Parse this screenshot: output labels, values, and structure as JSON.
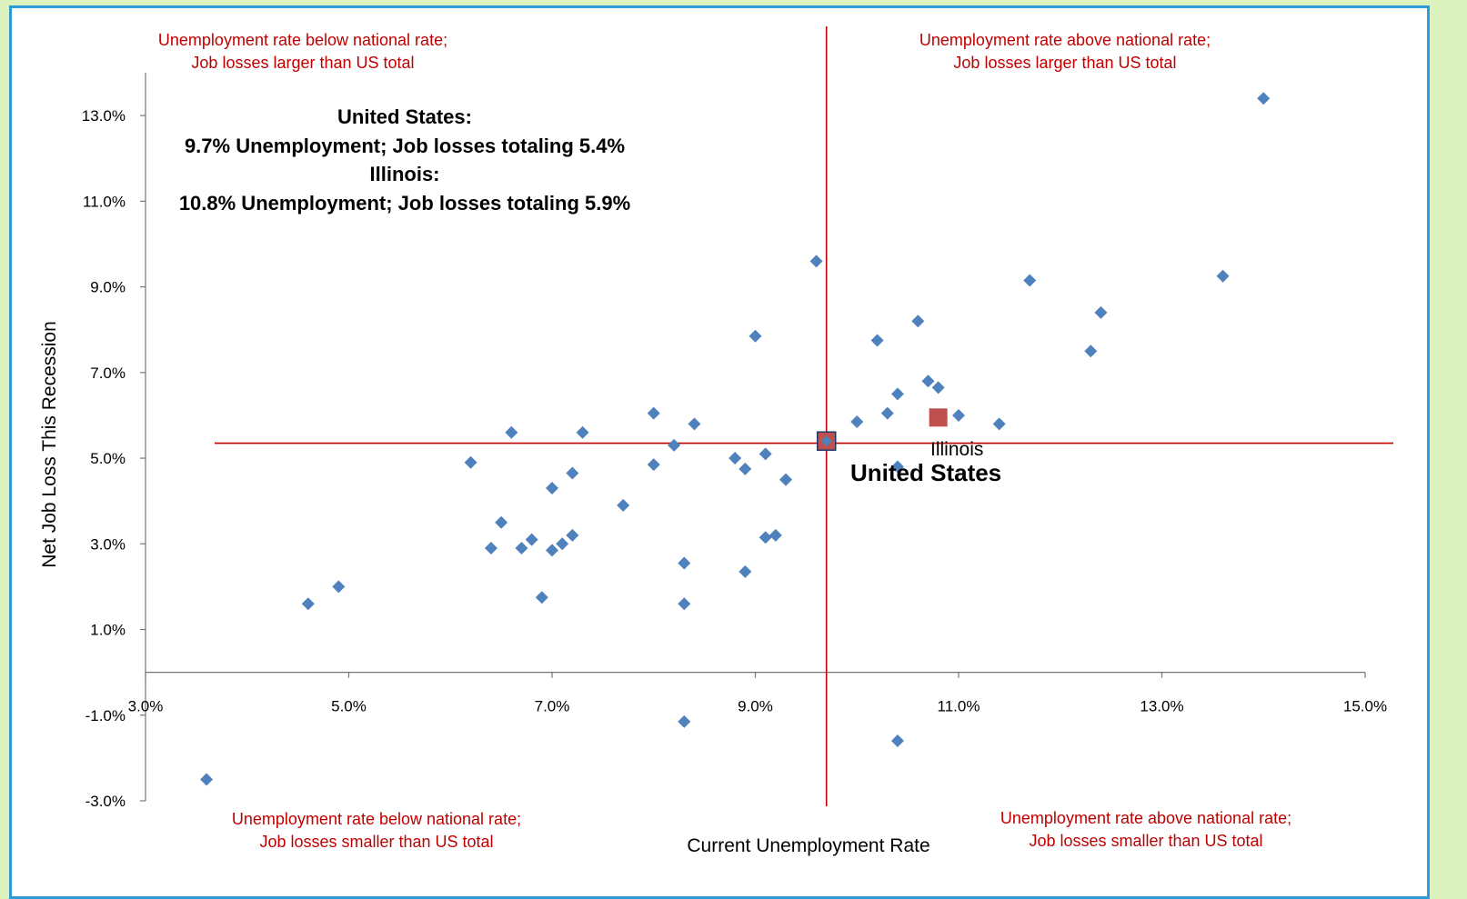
{
  "chart_data": {
    "type": "scatter",
    "xlabel": "Current Unemployment Rate",
    "ylabel": "Net Job Loss This Recession",
    "xlim": [
      3.0,
      15.0
    ],
    "ylim": [
      -3.0,
      14.0
    ],
    "x_ticks": [
      "3.0%",
      "5.0%",
      "7.0%",
      "9.0%",
      "11.0%",
      "13.0%",
      "15.0%"
    ],
    "y_ticks": [
      "-3.0%",
      "-1.0%",
      "1.0%",
      "3.0%",
      "5.0%",
      "7.0%",
      "9.0%",
      "11.0%",
      "13.0%"
    ],
    "x_tick_values": [
      3,
      5,
      7,
      9,
      11,
      13,
      15
    ],
    "y_tick_values": [
      -3,
      -1,
      1,
      3,
      5,
      7,
      9,
      11,
      13
    ],
    "reference_lines": {
      "x": 9.7,
      "y": 5.35
    },
    "quadrant_labels": {
      "top_left": [
        "Unemployment rate below national rate;",
        "Job losses larger than US total"
      ],
      "top_right": [
        "Unemployment rate above national rate;",
        "Job losses larger than US total"
      ],
      "bottom_left": [
        "Unemployment rate below national rate;",
        "Job losses smaller than US total"
      ],
      "bottom_right": [
        "Unemployment rate above national rate;",
        "Job losses smaller than US total"
      ]
    },
    "info_box": [
      "United States:",
      "9.7% Unemployment; Job losses totaling 5.4%",
      "Illinois:",
      "10.8% Unemployment; Job losses totaling 5.9%"
    ],
    "highlights": [
      {
        "label": "United States",
        "x": 9.7,
        "y": 5.4,
        "color": "#c0504d"
      },
      {
        "label": "Illinois",
        "x": 10.8,
        "y": 5.95,
        "color": "#c0504d"
      }
    ],
    "series": [
      {
        "color": "#4f81bd",
        "points": [
          [
            3.6,
            -2.5
          ],
          [
            4.6,
            1.6
          ],
          [
            4.9,
            2.0
          ],
          [
            6.2,
            4.9
          ],
          [
            6.4,
            2.9
          ],
          [
            6.5,
            3.5
          ],
          [
            6.6,
            5.6
          ],
          [
            6.7,
            2.9
          ],
          [
            6.8,
            3.1
          ],
          [
            6.9,
            1.75
          ],
          [
            7.0,
            4.3
          ],
          [
            7.0,
            2.85
          ],
          [
            7.1,
            3.0
          ],
          [
            7.2,
            4.65
          ],
          [
            7.2,
            3.2
          ],
          [
            7.3,
            5.6
          ],
          [
            7.7,
            3.9
          ],
          [
            8.0,
            6.05
          ],
          [
            8.0,
            4.85
          ],
          [
            8.2,
            5.3
          ],
          [
            8.3,
            2.55
          ],
          [
            8.3,
            1.6
          ],
          [
            8.3,
            -1.15
          ],
          [
            8.4,
            5.8
          ],
          [
            8.8,
            5.0
          ],
          [
            8.9,
            4.75
          ],
          [
            8.9,
            2.35
          ],
          [
            9.0,
            7.85
          ],
          [
            9.1,
            5.1
          ],
          [
            9.1,
            3.15
          ],
          [
            9.2,
            3.2
          ],
          [
            9.3,
            4.5
          ],
          [
            9.6,
            9.6
          ],
          [
            9.7,
            5.4
          ],
          [
            10.0,
            5.85
          ],
          [
            10.2,
            7.75
          ],
          [
            10.3,
            6.05
          ],
          [
            10.4,
            6.5
          ],
          [
            10.4,
            4.8
          ],
          [
            10.4,
            -1.6
          ],
          [
            10.6,
            8.2
          ],
          [
            10.7,
            6.8
          ],
          [
            10.8,
            6.65
          ],
          [
            11.0,
            6.0
          ],
          [
            11.4,
            5.8
          ],
          [
            11.7,
            9.15
          ],
          [
            12.3,
            7.5
          ],
          [
            12.4,
            8.4
          ],
          [
            13.6,
            9.25
          ],
          [
            14.0,
            13.4
          ]
        ]
      }
    ]
  }
}
